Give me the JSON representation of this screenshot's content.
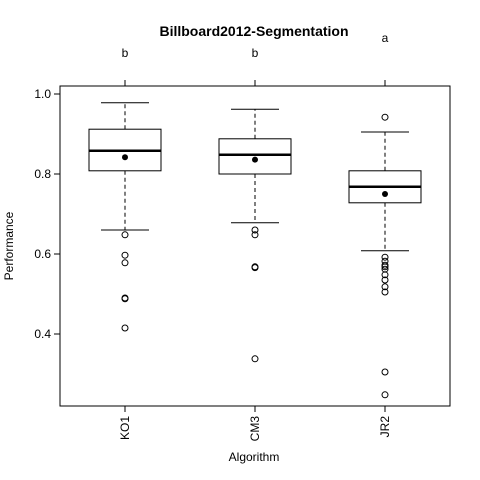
{
  "chart_data": {
    "type": "boxplot",
    "title": "Billboard2012-Segmentation",
    "xlabel": "Algorithm",
    "ylabel": "Performance",
    "ylim": [
      0.22,
      1.02
    ],
    "yticks": [
      0.4,
      0.6,
      0.8,
      1.0
    ],
    "ytick_labels": [
      "0.4",
      "0.6",
      "0.8",
      "1.0"
    ],
    "categories": [
      "KO1",
      "CM3",
      "JR2"
    ],
    "group_letters": [
      "b",
      "b",
      "a"
    ],
    "grid": false,
    "boxes": [
      {
        "name": "KO1",
        "whisker_low": 0.66,
        "q1": 0.808,
        "median": 0.858,
        "q3": 0.912,
        "whisker_high": 0.978,
        "mean": 0.842,
        "outliers": [
          0.648,
          0.597,
          0.578,
          0.49,
          0.488,
          0.415
        ]
      },
      {
        "name": "CM3",
        "whisker_low": 0.678,
        "q1": 0.8,
        "median": 0.848,
        "q3": 0.888,
        "whisker_high": 0.962,
        "mean": 0.836,
        "outliers": [
          0.66,
          0.648,
          0.568,
          0.566,
          0.338
        ]
      },
      {
        "name": "JR2",
        "whisker_low": 0.608,
        "q1": 0.728,
        "median": 0.768,
        "q3": 0.808,
        "whisker_high": 0.905,
        "mean": 0.75,
        "outliers": [
          0.942,
          0.592,
          0.582,
          0.572,
          0.568,
          0.562,
          0.548,
          0.535,
          0.518,
          0.505,
          0.305,
          0.248
        ]
      }
    ]
  }
}
